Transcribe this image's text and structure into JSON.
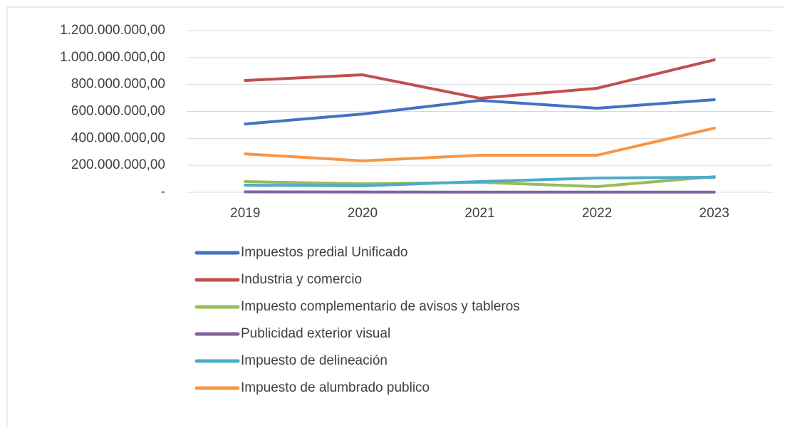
{
  "chart_data": {
    "type": "line",
    "categories": [
      "2019",
      "2020",
      "2021",
      "2022",
      "2023"
    ],
    "series": [
      {
        "name": "Impuestos predial Unificado",
        "color": "#4472c4",
        "values": [
          507000000,
          581000000,
          682000000,
          624000000,
          687000000
        ]
      },
      {
        "name": "Industria y comercio",
        "color": "#c0504d",
        "values": [
          830000000,
          872000000,
          698000000,
          772000000,
          983000000
        ]
      },
      {
        "name": "Impuesto complementario de avisos y tableros",
        "color": "#9bbb59",
        "values": [
          79000000,
          63000000,
          74000000,
          42000000,
          116000000
        ]
      },
      {
        "name": "Publicidad exterior visual",
        "color": "#8064a2",
        "values": [
          3000000,
          2000000,
          1000000,
          1000000,
          1000000
        ]
      },
      {
        "name": "Impuesto de delineación",
        "color": "#4bacc6",
        "values": [
          53000000,
          48000000,
          79000000,
          106000000,
          111000000
        ]
      },
      {
        "name": "Impuesto de alumbrado publico",
        "color": "#f79646",
        "values": [
          285000000,
          233000000,
          275000000,
          275000000,
          476000000
        ]
      }
    ],
    "ylim": [
      0,
      1200000000
    ],
    "yticks": [
      {
        "value": 0,
        "label": "-"
      },
      {
        "value": 200000000,
        "label": "200.000.000,00"
      },
      {
        "value": 400000000,
        "label": "400.000.000,00"
      },
      {
        "value": 600000000,
        "label": "600.000.000,00"
      },
      {
        "value": 800000000,
        "label": "800.000.000,00"
      },
      {
        "value": 1000000000,
        "label": "1.000.000.000,00"
      },
      {
        "value": 1200000000,
        "label": "1.200.000.000,00"
      }
    ],
    "grid": true
  }
}
